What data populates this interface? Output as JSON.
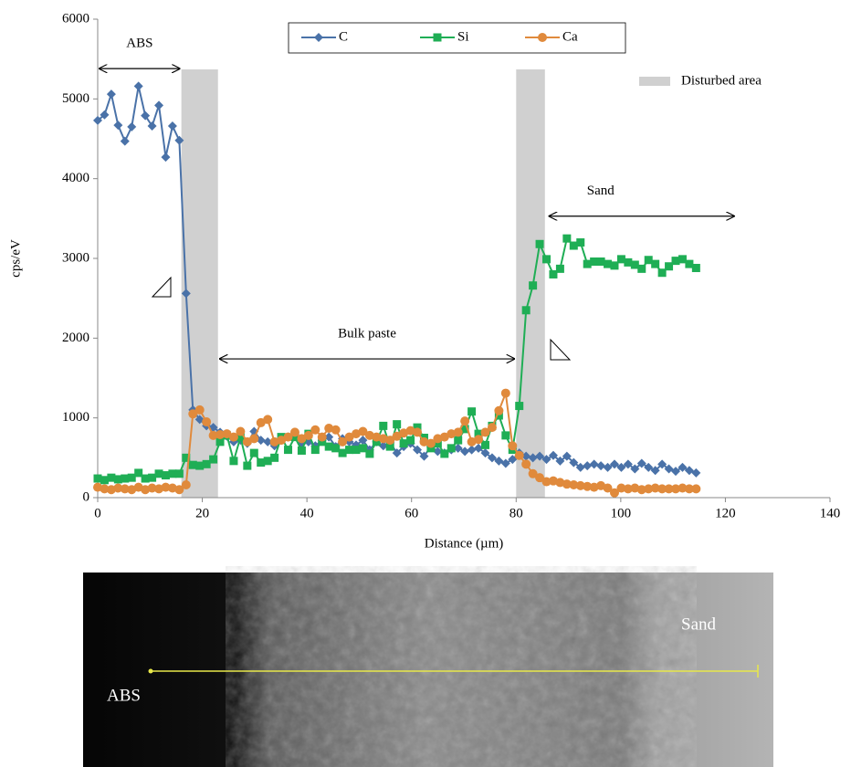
{
  "chart_data": {
    "type": "line",
    "x_label": "Distance (µm)",
    "y_label": "cps/eV",
    "xlim": [
      0,
      140
    ],
    "xticks": [
      0,
      20,
      40,
      60,
      80,
      100,
      120,
      140
    ],
    "ylim": [
      0,
      6000
    ],
    "yticks": [
      0,
      1000,
      2000,
      3000,
      4000,
      5000,
      6000
    ],
    "x": [
      0,
      1.3,
      2.6,
      3.9,
      5.2,
      6.5,
      7.8,
      9.1,
      10.4,
      11.7,
      13,
      14.3,
      15.6,
      16.9,
      18.2,
      19.5,
      20.8,
      22.1,
      23.4,
      24.7,
      26,
      27.3,
      28.6,
      29.9,
      31.2,
      32.5,
      33.8,
      35.1,
      36.4,
      37.7,
      39,
      40.3,
      41.6,
      42.9,
      44.2,
      45.5,
      46.8,
      48.1,
      49.4,
      50.7,
      52,
      53.3,
      54.6,
      55.9,
      57.2,
      58.5,
      59.8,
      61.1,
      62.4,
      63.7,
      65,
      66.3,
      67.6,
      68.9,
      70.2,
      71.5,
      72.8,
      74.1,
      75.4,
      76.7,
      78,
      79.3,
      80.6,
      81.9,
      83.2,
      84.5,
      85.8,
      87.1,
      88.4,
      89.7,
      91,
      92.3,
      93.6,
      94.9,
      96.2,
      97.5,
      98.8,
      100.1,
      101.4,
      102.7,
      104,
      105.3,
      106.6,
      107.9,
      109.2,
      110.5,
      111.8,
      113.1,
      114.4
    ],
    "series": [
      {
        "name": "C",
        "color": "#4a72a8",
        "marker": "diamond",
        "values": [
          4730,
          4800,
          5060,
          4670,
          4470,
          4650,
          5160,
          4790,
          4660,
          4920,
          4270,
          4660,
          4480,
          2560,
          1100,
          980,
          900,
          880,
          820,
          770,
          700,
          720,
          680,
          830,
          720,
          700,
          650,
          720,
          760,
          800,
          680,
          700,
          650,
          720,
          760,
          640,
          740,
          700,
          660,
          720,
          600,
          700,
          650,
          690,
          560,
          640,
          680,
          600,
          520,
          640,
          580,
          560,
          600,
          620,
          580,
          600,
          620,
          560,
          500,
          460,
          430,
          480,
          560,
          520,
          500,
          520,
          480,
          530,
          460,
          520,
          440,
          380,
          400,
          420,
          400,
          380,
          420,
          380,
          420,
          360,
          430,
          380,
          340,
          420,
          360,
          330,
          380,
          340,
          310
        ]
      },
      {
        "name": "Si",
        "color": "#1fae55",
        "marker": "square",
        "values": [
          240,
          220,
          250,
          230,
          240,
          250,
          310,
          240,
          250,
          300,
          280,
          300,
          300,
          500,
          410,
          400,
          420,
          480,
          700,
          780,
          460,
          760,
          400,
          560,
          440,
          460,
          500,
          760,
          600,
          760,
          590,
          800,
          600,
          700,
          640,
          620,
          560,
          600,
          600,
          620,
          550,
          700,
          900,
          640,
          920,
          680,
          720,
          880,
          750,
          620,
          680,
          550,
          620,
          720,
          860,
          1080,
          800,
          660,
          900,
          1030,
          780,
          600,
          1150,
          2350,
          2660,
          3180,
          2990,
          2800,
          2870,
          3250,
          3160,
          3200,
          2930,
          2960,
          2960,
          2930,
          2910,
          2990,
          2950,
          2920,
          2870,
          2980,
          2930,
          2820,
          2900,
          2970,
          2990,
          2930,
          2880
        ]
      },
      {
        "name": "Ca",
        "color": "#e08a3c",
        "marker": "circle",
        "values": [
          130,
          110,
          100,
          120,
          110,
          100,
          130,
          100,
          120,
          110,
          130,
          120,
          100,
          160,
          1050,
          1100,
          950,
          780,
          790,
          800,
          760,
          830,
          700,
          740,
          940,
          980,
          700,
          720,
          760,
          820,
          740,
          780,
          850,
          760,
          870,
          850,
          700,
          760,
          800,
          830,
          780,
          760,
          740,
          720,
          770,
          810,
          840,
          820,
          700,
          680,
          740,
          760,
          800,
          820,
          960,
          700,
          730,
          820,
          880,
          1090,
          1310,
          650,
          530,
          420,
          300,
          250,
          200,
          210,
          190,
          170,
          160,
          150,
          140,
          130,
          150,
          120,
          60,
          120,
          110,
          120,
          100,
          110,
          120,
          110,
          110,
          110,
          120,
          110,
          110
        ]
      }
    ],
    "shaded_regions": {
      "label": "Disturbed area",
      "color": "#d0d0d0",
      "spans": [
        [
          16,
          23
        ],
        [
          80,
          85.5
        ]
      ]
    },
    "annotations": [
      {
        "text": "ABS",
        "x": [
          0,
          16
        ],
        "y": 5380
      },
      {
        "text": "Bulk paste",
        "x": [
          23,
          80
        ],
        "y": 1740
      },
      {
        "text": "Sand",
        "x": [
          86,
          122
        ],
        "y": 3530
      }
    ]
  },
  "image": {
    "labels": [
      "ABS",
      "Sand"
    ]
  }
}
